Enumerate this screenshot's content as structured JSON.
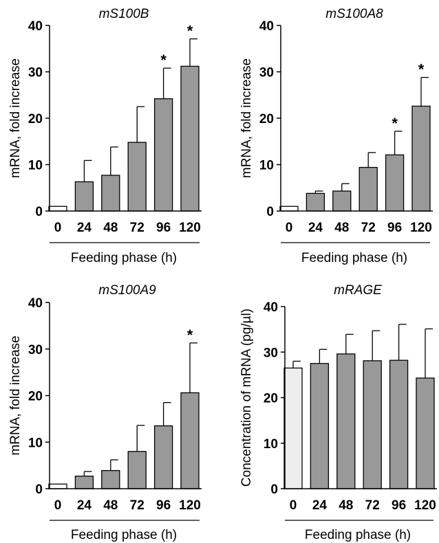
{
  "chart_data": [
    {
      "type": "bar",
      "title": "mS100B",
      "xlabel": "Feeding phase (h)",
      "ylabel": "mRNA, fold increase",
      "ylim": [
        0,
        40
      ],
      "yticks": [
        "0",
        "10",
        "20",
        "30",
        "40"
      ],
      "categories": [
        "0",
        "24",
        "48",
        "72",
        "96",
        "120"
      ],
      "values": [
        1.0,
        6.3,
        7.7,
        14.8,
        24.2,
        31.2
      ],
      "error": [
        0,
        4.6,
        6.1,
        7.7,
        6.6,
        5.9
      ],
      "significant": [
        false,
        false,
        false,
        false,
        true,
        true
      ],
      "significance_marker": "*",
      "bar_colors": [
        "#ffffff",
        "#999999",
        "#999999",
        "#999999",
        "#999999",
        "#999999"
      ]
    },
    {
      "type": "bar",
      "title": "mS100A8",
      "xlabel": "Feeding phase (h)",
      "ylabel": "mRNA, fold increase",
      "ylim": [
        0,
        40
      ],
      "yticks": [
        "0",
        "10",
        "20",
        "30",
        "40"
      ],
      "categories": [
        "0",
        "24",
        "48",
        "72",
        "96",
        "120"
      ],
      "values": [
        1.0,
        3.8,
        4.3,
        9.4,
        12.1,
        22.6
      ],
      "error": [
        0,
        0.5,
        1.6,
        3.2,
        5.1,
        6.2
      ],
      "significant": [
        false,
        false,
        false,
        false,
        true,
        true
      ],
      "significance_marker": "*",
      "bar_colors": [
        "#ffffff",
        "#999999",
        "#999999",
        "#999999",
        "#999999",
        "#999999"
      ]
    },
    {
      "type": "bar",
      "title": "mS100A9",
      "xlabel": "Feeding phase (h)",
      "ylabel": "mRNA, fold increase",
      "ylim": [
        0,
        40
      ],
      "yticks": [
        "0",
        "10",
        "20",
        "30",
        "40"
      ],
      "categories": [
        "0",
        "24",
        "48",
        "72",
        "96",
        "120"
      ],
      "values": [
        1.0,
        2.7,
        3.9,
        8.0,
        13.5,
        20.6
      ],
      "error": [
        0,
        1.0,
        2.3,
        5.6,
        5.0,
        10.7
      ],
      "significant": [
        false,
        false,
        false,
        false,
        false,
        true
      ],
      "significance_marker": "*",
      "bar_colors": [
        "#ffffff",
        "#999999",
        "#999999",
        "#999999",
        "#999999",
        "#999999"
      ]
    },
    {
      "type": "bar",
      "title": "mRAGE",
      "xlabel": "Feeding phase (h)",
      "ylabel": "Concentration of mRNA (pg/µl)",
      "ylim": [
        0,
        40
      ],
      "yticks": [
        "0",
        "10",
        "20",
        "30",
        "40"
      ],
      "categories": [
        "0",
        "24",
        "48",
        "72",
        "96",
        "120"
      ],
      "values": [
        26.5,
        27.5,
        29.6,
        28.1,
        28.2,
        24.3
      ],
      "error": [
        1.5,
        3.1,
        4.3,
        6.6,
        7.9,
        10.8
      ],
      "significant": [
        false,
        false,
        false,
        false,
        false,
        false
      ],
      "significance_marker": "*",
      "bar_colors": [
        "#eeeeee",
        "#999999",
        "#999999",
        "#999999",
        "#999999",
        "#999999"
      ]
    }
  ]
}
